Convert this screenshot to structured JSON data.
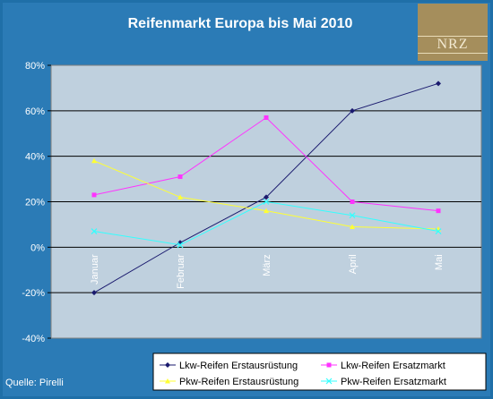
{
  "header": {
    "title": "Reifenmarkt Europa bis Mai 2010",
    "logo_text": "NRZ",
    "source": "Quelle: Pirelli"
  },
  "chart_data": {
    "type": "line",
    "title": "Reifenmarkt Europa bis Mai 2010",
    "categories": [
      "Januar",
      "Februar",
      "März",
      "April",
      "Mai"
    ],
    "ylim": [
      -40,
      80
    ],
    "yticks": [
      -40,
      -20,
      0,
      20,
      40,
      60,
      80
    ],
    "ytick_format": "percent",
    "grid": true,
    "legend_position": "bottom",
    "series": [
      {
        "name": "Lkw-Reifen Erstausrüstung",
        "values": [
          -20,
          2,
          22,
          60,
          72
        ],
        "color": "#1a1a6e",
        "marker": "diamond"
      },
      {
        "name": "Lkw-Reifen Ersatzmarkt",
        "values": [
          23,
          31,
          57,
          20,
          16
        ],
        "color": "#ff33ff",
        "marker": "square"
      },
      {
        "name": "Pkw-Reifen Erstausrüstung",
        "values": [
          38,
          22,
          16,
          9,
          8
        ],
        "color": "#ffff33",
        "marker": "triangle"
      },
      {
        "name": "Pkw-Reifen Ersatzmarkt",
        "values": [
          7,
          1,
          20,
          14,
          7
        ],
        "color": "#33ffff",
        "marker": "x"
      }
    ]
  }
}
